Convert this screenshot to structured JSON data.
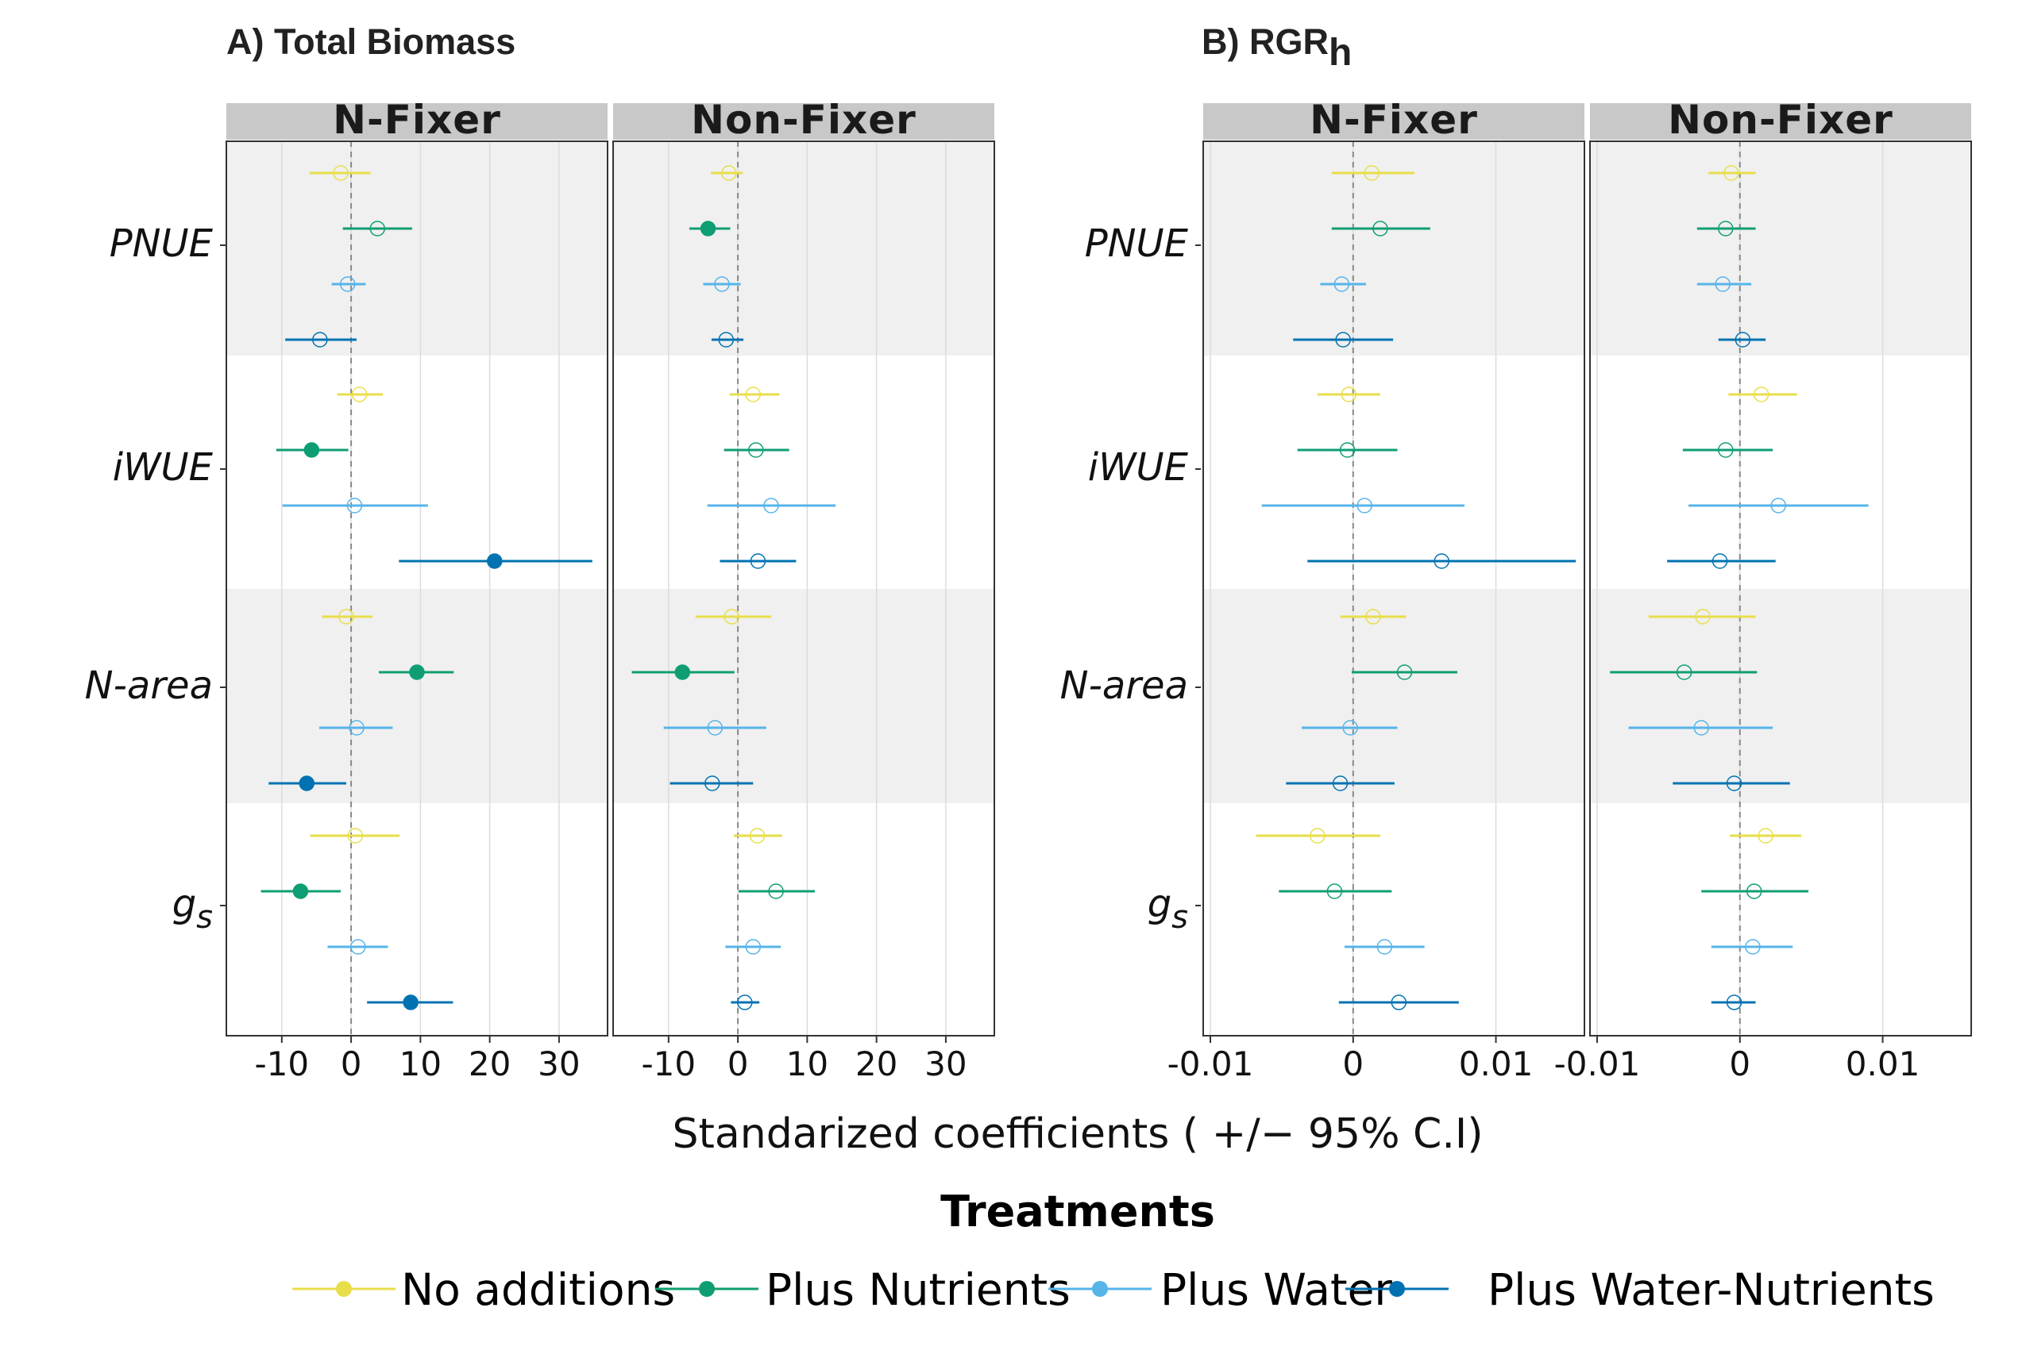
{
  "chart_data": {
    "type": "scatter",
    "x_label": "Standarized coefficients ( +/− 95% C.I)",
    "legend": {
      "title": "Treatments",
      "placement": "bottom",
      "items": [
        {
          "name": "No additions",
          "color": "#e8de4a"
        },
        {
          "name": "Plus Nutrients",
          "color": "#0f9e73"
        },
        {
          "name": "Plus Water",
          "color": "#56b4e9"
        },
        {
          "name": "Plus Water-Nutrients",
          "color": "#0072b2"
        }
      ]
    },
    "variables": [
      "PNUE",
      "iWUE",
      "N-area",
      "gs"
    ],
    "variable_labels": [
      {
        "main": "PNUE",
        "sub": ""
      },
      {
        "main": "iWUE",
        "sub": ""
      },
      {
        "main": "N-area",
        "sub": ""
      },
      {
        "main": "g",
        "sub": "s"
      }
    ],
    "panels": [
      {
        "title": "A) Total Biomass",
        "title_sub": "",
        "xlim": [
          -18,
          37
        ],
        "ticks": [
          -10,
          0,
          10,
          20,
          30
        ],
        "tick_labels": [
          "-10",
          "0",
          "10",
          "20",
          "30"
        ],
        "facets": [
          {
            "strip": "N-Fixer",
            "points": [
              {
                "var": "PNUE",
                "treatment": "No additions",
                "est": -1.5,
                "lo": -6,
                "hi": 2.8,
                "significant": false
              },
              {
                "var": "PNUE",
                "treatment": "Plus Nutrients",
                "est": 3.8,
                "lo": -1.2,
                "hi": 8.8,
                "significant": false
              },
              {
                "var": "PNUE",
                "treatment": "Plus Water",
                "est": -0.5,
                "lo": -2.8,
                "hi": 2.1,
                "significant": false
              },
              {
                "var": "PNUE",
                "treatment": "Plus Water-Nutrients",
                "est": -4.5,
                "lo": -9.5,
                "hi": 0.8,
                "significant": false
              },
              {
                "var": "iWUE",
                "treatment": "No additions",
                "est": 1.2,
                "lo": -2,
                "hi": 4.6,
                "significant": false
              },
              {
                "var": "iWUE",
                "treatment": "Plus Nutrients",
                "est": -5.7,
                "lo": -10.8,
                "hi": -0.4,
                "significant": true
              },
              {
                "var": "iWUE",
                "treatment": "Plus Water",
                "est": 0.5,
                "lo": -9.9,
                "hi": 11.1,
                "significant": false
              },
              {
                "var": "iWUE",
                "treatment": "Plus Water-Nutrients",
                "est": 20.7,
                "lo": 6.9,
                "hi": 34.8,
                "significant": true
              },
              {
                "var": "N-area",
                "treatment": "No additions",
                "est": -0.7,
                "lo": -4.2,
                "hi": 3.1,
                "significant": false
              },
              {
                "var": "N-area",
                "treatment": "Plus Nutrients",
                "est": 9.5,
                "lo": 4,
                "hi": 14.8,
                "significant": true
              },
              {
                "var": "N-area",
                "treatment": "Plus Water",
                "est": 0.8,
                "lo": -4.6,
                "hi": 6,
                "significant": false
              },
              {
                "var": "N-area",
                "treatment": "Plus Water-Nutrients",
                "est": -6.4,
                "lo": -11.9,
                "hi": -0.7,
                "significant": true
              },
              {
                "var": "gs",
                "treatment": "No additions",
                "est": 0.6,
                "lo": -5.9,
                "hi": 7,
                "significant": false
              },
              {
                "var": "gs",
                "treatment": "Plus Nutrients",
                "est": -7.3,
                "lo": -13,
                "hi": -1.5,
                "significant": true
              },
              {
                "var": "gs",
                "treatment": "Plus Water",
                "est": 1,
                "lo": -3.4,
                "hi": 5.3,
                "significant": false
              },
              {
                "var": "gs",
                "treatment": "Plus Water-Nutrients",
                "est": 8.6,
                "lo": 2.3,
                "hi": 14.7,
                "significant": true
              }
            ]
          },
          {
            "strip": "Non-Fixer",
            "points": [
              {
                "var": "PNUE",
                "treatment": "No additions",
                "est": -1.3,
                "lo": -3.9,
                "hi": 0.7,
                "significant": false
              },
              {
                "var": "PNUE",
                "treatment": "Plus Nutrients",
                "est": -4.3,
                "lo": -7,
                "hi": -1.1,
                "significant": true
              },
              {
                "var": "PNUE",
                "treatment": "Plus Water",
                "est": -2.3,
                "lo": -5,
                "hi": 0.4,
                "significant": false
              },
              {
                "var": "PNUE",
                "treatment": "Plus Water-Nutrients",
                "est": -1.7,
                "lo": -3.8,
                "hi": 0.8,
                "significant": false
              },
              {
                "var": "iWUE",
                "treatment": "No additions",
                "est": 2.2,
                "lo": -1.2,
                "hi": 6,
                "significant": false
              },
              {
                "var": "iWUE",
                "treatment": "Plus Nutrients",
                "est": 2.6,
                "lo": -2,
                "hi": 7.4,
                "significant": false
              },
              {
                "var": "iWUE",
                "treatment": "Plus Water",
                "est": 4.8,
                "lo": -4.4,
                "hi": 14.1,
                "significant": false
              },
              {
                "var": "iWUE",
                "treatment": "Plus Water-Nutrients",
                "est": 2.9,
                "lo": -2.6,
                "hi": 8.4,
                "significant": false
              },
              {
                "var": "N-area",
                "treatment": "No additions",
                "est": -0.9,
                "lo": -6.1,
                "hi": 4.8,
                "significant": false
              },
              {
                "var": "N-area",
                "treatment": "Plus Nutrients",
                "est": -8,
                "lo": -15.3,
                "hi": -0.5,
                "significant": true
              },
              {
                "var": "N-area",
                "treatment": "Plus Water",
                "est": -3.3,
                "lo": -10.7,
                "hi": 4.1,
                "significant": false
              },
              {
                "var": "N-area",
                "treatment": "Plus Water-Nutrients",
                "est": -3.7,
                "lo": -9.8,
                "hi": 2.2,
                "significant": false
              },
              {
                "var": "gs",
                "treatment": "No additions",
                "est": 2.8,
                "lo": -0.6,
                "hi": 6.4,
                "significant": false
              },
              {
                "var": "gs",
                "treatment": "Plus Nutrients",
                "est": 5.5,
                "lo": 0.1,
                "hi": 11.1,
                "significant": false
              },
              {
                "var": "gs",
                "treatment": "Plus Water",
                "est": 2.2,
                "lo": -1.8,
                "hi": 6.2,
                "significant": false
              },
              {
                "var": "gs",
                "treatment": "Plus Water-Nutrients",
                "est": 1,
                "lo": -1,
                "hi": 3.1,
                "significant": false
              }
            ]
          }
        ]
      },
      {
        "title": "B) RGR",
        "title_sub": "h",
        "xlim": [
          -0.0105,
          0.0162
        ],
        "ticks": [
          -0.01,
          0,
          0.01
        ],
        "tick_labels": [
          "-0.01",
          "0",
          "0.01"
        ],
        "facets": [
          {
            "strip": "N-Fixer",
            "points": [
              {
                "var": "PNUE",
                "treatment": "No additions",
                "est": 0.0013,
                "lo": -0.0015,
                "hi": 0.0043,
                "significant": false
              },
              {
                "var": "PNUE",
                "treatment": "Plus Nutrients",
                "est": 0.0019,
                "lo": -0.0015,
                "hi": 0.0054,
                "significant": false
              },
              {
                "var": "PNUE",
                "treatment": "Plus Water",
                "est": -0.0008,
                "lo": -0.0023,
                "hi": 0.0009,
                "significant": false
              },
              {
                "var": "PNUE",
                "treatment": "Plus Water-Nutrients",
                "est": -0.0007,
                "lo": -0.0042,
                "hi": 0.0028,
                "significant": false
              },
              {
                "var": "iWUE",
                "treatment": "No additions",
                "est": -0.0003,
                "lo": -0.0025,
                "hi": 0.0019,
                "significant": false
              },
              {
                "var": "iWUE",
                "treatment": "Plus Nutrients",
                "est": -0.0004,
                "lo": -0.0039,
                "hi": 0.0031,
                "significant": false
              },
              {
                "var": "iWUE",
                "treatment": "Plus Water",
                "est": 0.0008,
                "lo": -0.0064,
                "hi": 0.0078,
                "significant": false
              },
              {
                "var": "iWUE",
                "treatment": "Plus Water-Nutrients",
                "est": 0.0062,
                "lo": -0.0032,
                "hi": 0.0156,
                "significant": false
              },
              {
                "var": "N-area",
                "treatment": "No additions",
                "est": 0.0014,
                "lo": -0.0009,
                "hi": 0.0037,
                "significant": false
              },
              {
                "var": "N-area",
                "treatment": "Plus Nutrients",
                "est": 0.0036,
                "lo": -0.0001,
                "hi": 0.0073,
                "significant": false
              },
              {
                "var": "N-area",
                "treatment": "Plus Water",
                "est": -0.0002,
                "lo": -0.0036,
                "hi": 0.0031,
                "significant": false
              },
              {
                "var": "N-area",
                "treatment": "Plus Water-Nutrients",
                "est": -0.0009,
                "lo": -0.0047,
                "hi": 0.0029,
                "significant": false
              },
              {
                "var": "gs",
                "treatment": "No additions",
                "est": -0.0025,
                "lo": -0.0068,
                "hi": 0.0019,
                "significant": false
              },
              {
                "var": "gs",
                "treatment": "Plus Nutrients",
                "est": -0.0013,
                "lo": -0.0052,
                "hi": 0.0027,
                "significant": false
              },
              {
                "var": "gs",
                "treatment": "Plus Water",
                "est": 0.0022,
                "lo": -0.0006,
                "hi": 0.005,
                "significant": false
              },
              {
                "var": "gs",
                "treatment": "Plus Water-Nutrients",
                "est": 0.0032,
                "lo": -0.001,
                "hi": 0.0074,
                "significant": false
              }
            ]
          },
          {
            "strip": "Non-Fixer",
            "points": [
              {
                "var": "PNUE",
                "treatment": "No additions",
                "est": -0.0006,
                "lo": -0.0022,
                "hi": 0.0011,
                "significant": false
              },
              {
                "var": "PNUE",
                "treatment": "Plus Nutrients",
                "est": -0.001,
                "lo": -0.003,
                "hi": 0.0011,
                "significant": false
              },
              {
                "var": "PNUE",
                "treatment": "Plus Water",
                "est": -0.0012,
                "lo": -0.003,
                "hi": 0.0008,
                "significant": false
              },
              {
                "var": "PNUE",
                "treatment": "Plus Water-Nutrients",
                "est": 0.0002,
                "lo": -0.0015,
                "hi": 0.0018,
                "significant": false
              },
              {
                "var": "iWUE",
                "treatment": "No additions",
                "est": 0.0015,
                "lo": -0.0008,
                "hi": 0.004,
                "significant": false
              },
              {
                "var": "iWUE",
                "treatment": "Plus Nutrients",
                "est": -0.001,
                "lo": -0.004,
                "hi": 0.0023,
                "significant": false
              },
              {
                "var": "iWUE",
                "treatment": "Plus Water",
                "est": 0.0027,
                "lo": -0.0036,
                "hi": 0.009,
                "significant": false
              },
              {
                "var": "iWUE",
                "treatment": "Plus Water-Nutrients",
                "est": -0.0014,
                "lo": -0.0051,
                "hi": 0.0025,
                "significant": false
              },
              {
                "var": "N-area",
                "treatment": "No additions",
                "est": -0.0026,
                "lo": -0.0064,
                "hi": 0.0011,
                "significant": false
              },
              {
                "var": "N-area",
                "treatment": "Plus Nutrients",
                "est": -0.0039,
                "lo": -0.0091,
                "hi": 0.0012,
                "significant": false
              },
              {
                "var": "N-area",
                "treatment": "Plus Water",
                "est": -0.0027,
                "lo": -0.0078,
                "hi": 0.0023,
                "significant": false
              },
              {
                "var": "N-area",
                "treatment": "Plus Water-Nutrients",
                "est": -0.0004,
                "lo": -0.0047,
                "hi": 0.0035,
                "significant": false
              },
              {
                "var": "gs",
                "treatment": "No additions",
                "est": 0.0018,
                "lo": -0.0007,
                "hi": 0.0043,
                "significant": false
              },
              {
                "var": "gs",
                "treatment": "Plus Nutrients",
                "est": 0.001,
                "lo": -0.0027,
                "hi": 0.0048,
                "significant": false
              },
              {
                "var": "gs",
                "treatment": "Plus Water",
                "est": 0.0009,
                "lo": -0.002,
                "hi": 0.0037,
                "significant": false
              },
              {
                "var": "gs",
                "treatment": "Plus Water-Nutrients",
                "est": -0.0004,
                "lo": -0.002,
                "hi": 0.0011,
                "significant": false
              }
            ]
          }
        ]
      }
    ]
  }
}
